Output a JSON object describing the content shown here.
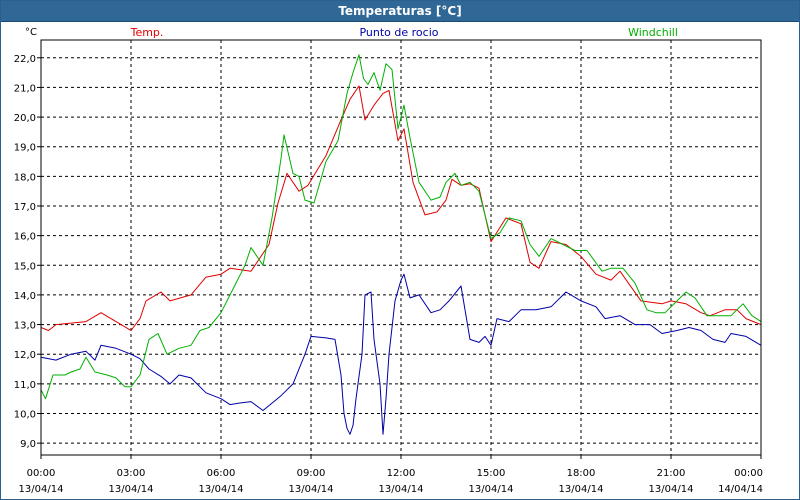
{
  "window": {
    "title": "Temperaturas [°C]"
  },
  "chart_data": {
    "type": "line",
    "title": "Temperaturas [°C]",
    "ylabel": "°C",
    "xlabel": "",
    "ylim": [
      8.6,
      22.6
    ],
    "xlim_hours": [
      0,
      24
    ],
    "grid": true,
    "legend": "top",
    "yticks": [
      9.0,
      10.0,
      11.0,
      12.0,
      13.0,
      14.0,
      15.0,
      16.0,
      17.0,
      18.0,
      19.0,
      20.0,
      21.0,
      22.0
    ],
    "ytick_labels": [
      "9,0",
      "10,0",
      "11,0",
      "12,0",
      "13,0",
      "14,0",
      "15,0",
      "16,0",
      "17,0",
      "18,0",
      "19,0",
      "20,0",
      "21,0",
      "22,0"
    ],
    "xticks": [
      {
        "time": "00:00",
        "date": "13/04/14"
      },
      {
        "time": "03:00",
        "date": "13/04/14"
      },
      {
        "time": "06:00",
        "date": "13/04/14"
      },
      {
        "time": "09:00",
        "date": "13/04/14"
      },
      {
        "time": "12:00",
        "date": "13/04/14"
      },
      {
        "time": "15:00",
        "date": "13/04/14"
      },
      {
        "time": "18:00",
        "date": "13/04/14"
      },
      {
        "time": "21:00",
        "date": "13/04/14"
      },
      {
        "time": "00:00",
        "date": "14/04/14"
      }
    ],
    "series": [
      {
        "name": "Temp.",
        "color": "#e00000",
        "points": [
          [
            0.0,
            12.9
          ],
          [
            0.25,
            12.8
          ],
          [
            0.5,
            13.0
          ],
          [
            1.0,
            13.05
          ],
          [
            1.5,
            13.1
          ],
          [
            2.0,
            13.4
          ],
          [
            2.5,
            13.1
          ],
          [
            3.0,
            12.8
          ],
          [
            3.3,
            13.2
          ],
          [
            3.5,
            13.8
          ],
          [
            4.0,
            14.1
          ],
          [
            4.3,
            13.8
          ],
          [
            5.0,
            14.0
          ],
          [
            5.5,
            14.6
          ],
          [
            6.0,
            14.7
          ],
          [
            6.3,
            14.9
          ],
          [
            7.0,
            14.8
          ],
          [
            7.6,
            15.7
          ],
          [
            7.9,
            17.1
          ],
          [
            8.2,
            18.1
          ],
          [
            8.6,
            17.5
          ],
          [
            8.9,
            17.7
          ],
          [
            9.5,
            18.7
          ],
          [
            10.0,
            19.9
          ],
          [
            10.3,
            20.6
          ],
          [
            10.6,
            21.05
          ],
          [
            10.8,
            19.9
          ],
          [
            11.1,
            20.4
          ],
          [
            11.4,
            20.8
          ],
          [
            11.6,
            20.9
          ],
          [
            11.9,
            19.2
          ],
          [
            12.1,
            19.6
          ],
          [
            12.4,
            17.8
          ],
          [
            12.8,
            16.7
          ],
          [
            13.2,
            16.8
          ],
          [
            13.5,
            17.2
          ],
          [
            13.7,
            17.9
          ],
          [
            14.0,
            17.7
          ],
          [
            14.3,
            17.75
          ],
          [
            14.6,
            17.6
          ],
          [
            15.0,
            15.8
          ],
          [
            15.5,
            16.6
          ],
          [
            16.0,
            16.4
          ],
          [
            16.3,
            15.1
          ],
          [
            16.6,
            14.9
          ],
          [
            17.0,
            15.8
          ],
          [
            17.5,
            15.7
          ],
          [
            18.0,
            15.3
          ],
          [
            18.5,
            14.7
          ],
          [
            19.0,
            14.5
          ],
          [
            19.3,
            14.8
          ],
          [
            20.0,
            13.8
          ],
          [
            20.7,
            13.7
          ],
          [
            21.0,
            13.8
          ],
          [
            21.5,
            13.7
          ],
          [
            22.0,
            13.4
          ],
          [
            22.3,
            13.3
          ],
          [
            22.8,
            13.5
          ],
          [
            23.2,
            13.5
          ],
          [
            23.5,
            13.2
          ],
          [
            24.0,
            13.0
          ]
        ]
      },
      {
        "name": "Punto de rocio",
        "color": "#0000a8",
        "points": [
          [
            0.0,
            11.9
          ],
          [
            0.5,
            11.8
          ],
          [
            1.0,
            12.0
          ],
          [
            1.5,
            12.1
          ],
          [
            1.8,
            11.8
          ],
          [
            2.0,
            12.3
          ],
          [
            2.5,
            12.2
          ],
          [
            3.0,
            12.0
          ],
          [
            3.3,
            11.85
          ],
          [
            3.6,
            11.5
          ],
          [
            4.0,
            11.25
          ],
          [
            4.3,
            11.0
          ],
          [
            4.6,
            11.3
          ],
          [
            5.0,
            11.2
          ],
          [
            5.5,
            10.7
          ],
          [
            6.0,
            10.5
          ],
          [
            6.3,
            10.3
          ],
          [
            6.6,
            10.35
          ],
          [
            7.0,
            10.4
          ],
          [
            7.4,
            10.1
          ],
          [
            8.0,
            10.6
          ],
          [
            8.4,
            11.0
          ],
          [
            8.8,
            12.0
          ],
          [
            9.0,
            12.6
          ],
          [
            9.5,
            12.55
          ],
          [
            9.8,
            12.5
          ],
          [
            10.0,
            11.3
          ],
          [
            10.1,
            10.0
          ],
          [
            10.2,
            9.5
          ],
          [
            10.3,
            9.3
          ],
          [
            10.4,
            9.6
          ],
          [
            10.5,
            10.5
          ],
          [
            10.7,
            12.0
          ],
          [
            10.8,
            14.0
          ],
          [
            11.0,
            14.1
          ],
          [
            11.1,
            12.5
          ],
          [
            11.3,
            11.0
          ],
          [
            11.4,
            9.3
          ],
          [
            11.5,
            10.5
          ],
          [
            11.6,
            12.0
          ],
          [
            11.8,
            13.8
          ],
          [
            12.0,
            14.5
          ],
          [
            12.1,
            14.7
          ],
          [
            12.3,
            13.9
          ],
          [
            12.6,
            14.0
          ],
          [
            13.0,
            13.4
          ],
          [
            13.3,
            13.5
          ],
          [
            13.6,
            13.8
          ],
          [
            14.0,
            14.3
          ],
          [
            14.3,
            12.5
          ],
          [
            14.6,
            12.4
          ],
          [
            14.8,
            12.6
          ],
          [
            15.0,
            12.3
          ],
          [
            15.2,
            13.2
          ],
          [
            15.6,
            13.1
          ],
          [
            16.0,
            13.5
          ],
          [
            16.5,
            13.5
          ],
          [
            17.0,
            13.6
          ],
          [
            17.5,
            14.1
          ],
          [
            18.0,
            13.8
          ],
          [
            18.5,
            13.6
          ],
          [
            18.8,
            13.2
          ],
          [
            19.3,
            13.3
          ],
          [
            19.8,
            13.0
          ],
          [
            20.3,
            13.0
          ],
          [
            20.7,
            12.7
          ],
          [
            21.2,
            12.8
          ],
          [
            21.6,
            12.9
          ],
          [
            22.0,
            12.8
          ],
          [
            22.4,
            12.5
          ],
          [
            22.8,
            12.4
          ],
          [
            23.0,
            12.7
          ],
          [
            23.5,
            12.6
          ],
          [
            24.0,
            12.3
          ]
        ]
      },
      {
        "name": "Windchill",
        "color": "#00b000",
        "points": [
          [
            0.0,
            10.8
          ],
          [
            0.15,
            10.5
          ],
          [
            0.4,
            11.3
          ],
          [
            0.8,
            11.3
          ],
          [
            1.0,
            11.4
          ],
          [
            1.3,
            11.5
          ],
          [
            1.5,
            11.9
          ],
          [
            1.8,
            11.4
          ],
          [
            2.2,
            11.3
          ],
          [
            2.5,
            11.2
          ],
          [
            2.8,
            10.9
          ],
          [
            3.0,
            10.9
          ],
          [
            3.3,
            11.3
          ],
          [
            3.6,
            12.5
          ],
          [
            3.9,
            12.7
          ],
          [
            4.2,
            12.0
          ],
          [
            4.6,
            12.2
          ],
          [
            5.0,
            12.3
          ],
          [
            5.3,
            12.8
          ],
          [
            5.6,
            12.9
          ],
          [
            6.0,
            13.4
          ],
          [
            6.4,
            14.2
          ],
          [
            6.8,
            15.0
          ],
          [
            7.0,
            15.6
          ],
          [
            7.4,
            15.0
          ],
          [
            7.7,
            16.6
          ],
          [
            8.0,
            18.6
          ],
          [
            8.1,
            19.4
          ],
          [
            8.4,
            18.1
          ],
          [
            8.6,
            18.0
          ],
          [
            8.8,
            17.2
          ],
          [
            9.1,
            17.1
          ],
          [
            9.5,
            18.5
          ],
          [
            9.9,
            19.2
          ],
          [
            10.2,
            20.8
          ],
          [
            10.4,
            21.5
          ],
          [
            10.6,
            22.1
          ],
          [
            10.75,
            21.3
          ],
          [
            10.9,
            21.1
          ],
          [
            11.1,
            21.5
          ],
          [
            11.3,
            20.9
          ],
          [
            11.5,
            21.8
          ],
          [
            11.7,
            21.6
          ],
          [
            11.9,
            19.6
          ],
          [
            12.1,
            20.4
          ],
          [
            12.3,
            19.3
          ],
          [
            12.6,
            17.8
          ],
          [
            13.0,
            17.2
          ],
          [
            13.3,
            17.3
          ],
          [
            13.5,
            17.8
          ],
          [
            13.8,
            18.1
          ],
          [
            14.0,
            17.7
          ],
          [
            14.3,
            17.8
          ],
          [
            14.6,
            17.5
          ],
          [
            15.0,
            15.9
          ],
          [
            15.3,
            16.1
          ],
          [
            15.6,
            16.6
          ],
          [
            16.0,
            16.5
          ],
          [
            16.3,
            15.7
          ],
          [
            16.6,
            15.3
          ],
          [
            17.0,
            15.9
          ],
          [
            17.4,
            15.7
          ],
          [
            17.8,
            15.5
          ],
          [
            18.2,
            15.5
          ],
          [
            18.7,
            14.8
          ],
          [
            19.0,
            14.9
          ],
          [
            19.4,
            14.9
          ],
          [
            19.8,
            14.4
          ],
          [
            20.2,
            13.5
          ],
          [
            20.5,
            13.4
          ],
          [
            20.8,
            13.4
          ],
          [
            21.2,
            13.8
          ],
          [
            21.5,
            14.1
          ],
          [
            21.8,
            13.9
          ],
          [
            22.2,
            13.3
          ],
          [
            22.6,
            13.3
          ],
          [
            23.0,
            13.3
          ],
          [
            23.4,
            13.7
          ],
          [
            23.7,
            13.3
          ],
          [
            24.0,
            13.1
          ]
        ]
      }
    ]
  }
}
